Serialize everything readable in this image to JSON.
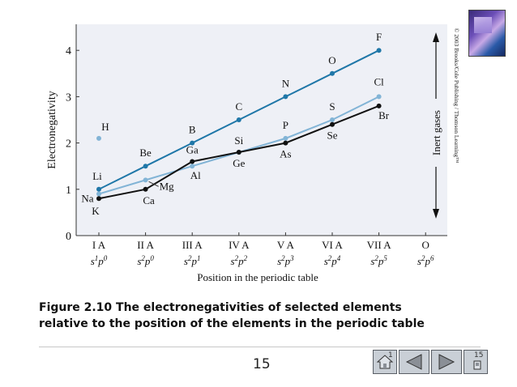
{
  "chart_data": {
    "type": "line",
    "xlabel": "Position in the periodic table",
    "ylabel": "Electronegativity",
    "ylim": [
      0,
      4.5
    ],
    "yticks": [
      0,
      1,
      2,
      3,
      4
    ],
    "categories": [
      "I A",
      "II A",
      "III A",
      "IV A",
      "V A",
      "VI A",
      "VII A",
      "O"
    ],
    "config_labels": [
      [
        "s",
        "1",
        "p",
        "0"
      ],
      [
        "s",
        "2",
        "p",
        "0"
      ],
      [
        "s",
        "2",
        "p",
        "1"
      ],
      [
        "s",
        "2",
        "p",
        "2"
      ],
      [
        "s",
        "2",
        "p",
        "3"
      ],
      [
        "s",
        "2",
        "p",
        "4"
      ],
      [
        "s",
        "2",
        "p",
        "5"
      ],
      [
        "s",
        "2",
        "p",
        "6"
      ]
    ],
    "grid": false,
    "series": [
      {
        "color": "#1f77a8",
        "points": [
          {
            "x": 0,
            "y": 1.0,
            "label": "Li"
          },
          {
            "x": 1,
            "y": 1.5,
            "label": "Be"
          },
          {
            "x": 2,
            "y": 2.0,
            "label": "B"
          },
          {
            "x": 3,
            "y": 2.5,
            "label": "C"
          },
          {
            "x": 4,
            "y": 3.0,
            "label": "N"
          },
          {
            "x": 5,
            "y": 3.5,
            "label": "O"
          },
          {
            "x": 6,
            "y": 4.0,
            "label": "F"
          }
        ]
      },
      {
        "color": "#82b4d6",
        "points": [
          {
            "x": 0,
            "y": 0.9,
            "label": "Na"
          },
          {
            "x": 1,
            "y": 1.2,
            "label": "Mg"
          },
          {
            "x": 2,
            "y": 1.5,
            "label": "Al"
          },
          {
            "x": 3,
            "y": 1.8,
            "label": "Si"
          },
          {
            "x": 4,
            "y": 2.1,
            "label": "P"
          },
          {
            "x": 5,
            "y": 2.5,
            "label": "S"
          },
          {
            "x": 6,
            "y": 3.0,
            "label": "Cl"
          }
        ]
      },
      {
        "color": "#111111",
        "points": [
          {
            "x": 0,
            "y": 0.8,
            "label": "K"
          },
          {
            "x": 1,
            "y": 1.0,
            "label": "Ca"
          },
          {
            "x": 2,
            "y": 1.6,
            "label": "Ga"
          },
          {
            "x": 3,
            "y": 1.8,
            "label": "Ge"
          },
          {
            "x": 4,
            "y": 2.0,
            "label": "As"
          },
          {
            "x": 5,
            "y": 2.4,
            "label": "Se"
          },
          {
            "x": 6,
            "y": 2.8,
            "label": "Br"
          }
        ]
      }
    ],
    "single_points": [
      {
        "x": 0,
        "y": 2.1,
        "label": "H",
        "color": "#82b4d6"
      }
    ],
    "annotations": {
      "inert_gases": "Inert gases",
      "copyright": "© 2003 Brooks/Cole Publishing / Thomson Learning™"
    }
  },
  "caption": {
    "line1": "Figure 2.10 The electronegativities of selected elements",
    "line2": "relative to the position of the elements in the periodic table"
  },
  "page_number": "15",
  "nav": {
    "left_number": "1",
    "right_number": "15"
  },
  "colors": {
    "series_dark_blue": "#1f77a8",
    "series_light_blue": "#82b4d6",
    "series_black": "#111111",
    "nav_button": "#c9cfd6"
  }
}
